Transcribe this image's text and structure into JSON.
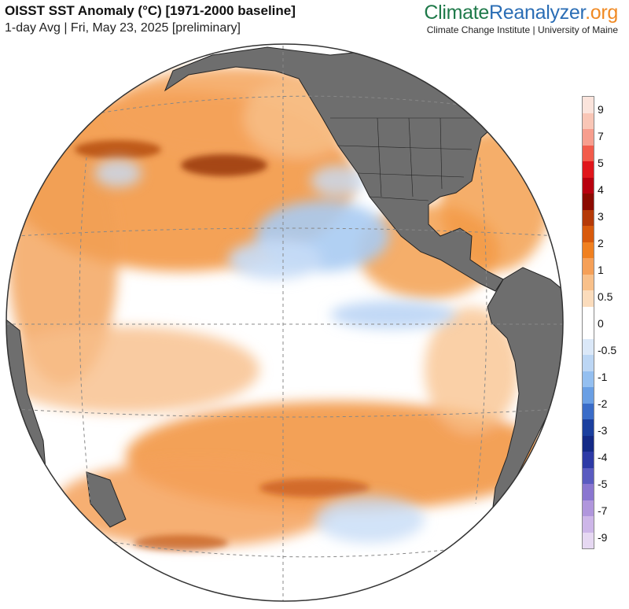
{
  "header": {
    "title": "OISST SST Anomaly (°C) [1971-2000 baseline]",
    "subtitle": "1-day Avg | Fri, May 23, 2025 [preliminary]"
  },
  "brand": {
    "part1": "Climate",
    "part2": "Reanalyzer",
    "part3": ".org",
    "org_line": "Climate Change Institute | University of Maine",
    "colors": {
      "part1": "#1f7a4a",
      "part2": "#2a6db5",
      "part3": "#f08a24"
    }
  },
  "map": {
    "projection": "orthographic",
    "center": "Eastern Pacific Ocean",
    "land_color": "#6e6e6e",
    "ocean_neutral_color": "#ffffff",
    "graticule": "dashed grey"
  },
  "legend": {
    "title": "",
    "labels": [
      "9",
      "7",
      "5",
      "4",
      "3",
      "2",
      "1",
      "0.5",
      "0",
      "-0.5",
      "-1",
      "-2",
      "-3",
      "-4",
      "-5",
      "-7",
      "-9"
    ],
    "colors": [
      "#fbe4dc",
      "#f9c6b6",
      "#f79e8e",
      "#f25b4b",
      "#e0161c",
      "#b8000f",
      "#8c0a00",
      "#b53a08",
      "#d85a0c",
      "#f08020",
      "#f5a058",
      "#f8c08a",
      "#fbdcbc",
      "#ffffff",
      "#ffffff",
      "#dbe8f8",
      "#bcd6f4",
      "#94bff0",
      "#6a9fe4",
      "#3a6cc8",
      "#1b3f9e",
      "#142a86",
      "#2d3aa6",
      "#5a5bc0",
      "#8a76d0",
      "#b096dc",
      "#cdb6e8",
      "#e6d8f2"
    ]
  }
}
